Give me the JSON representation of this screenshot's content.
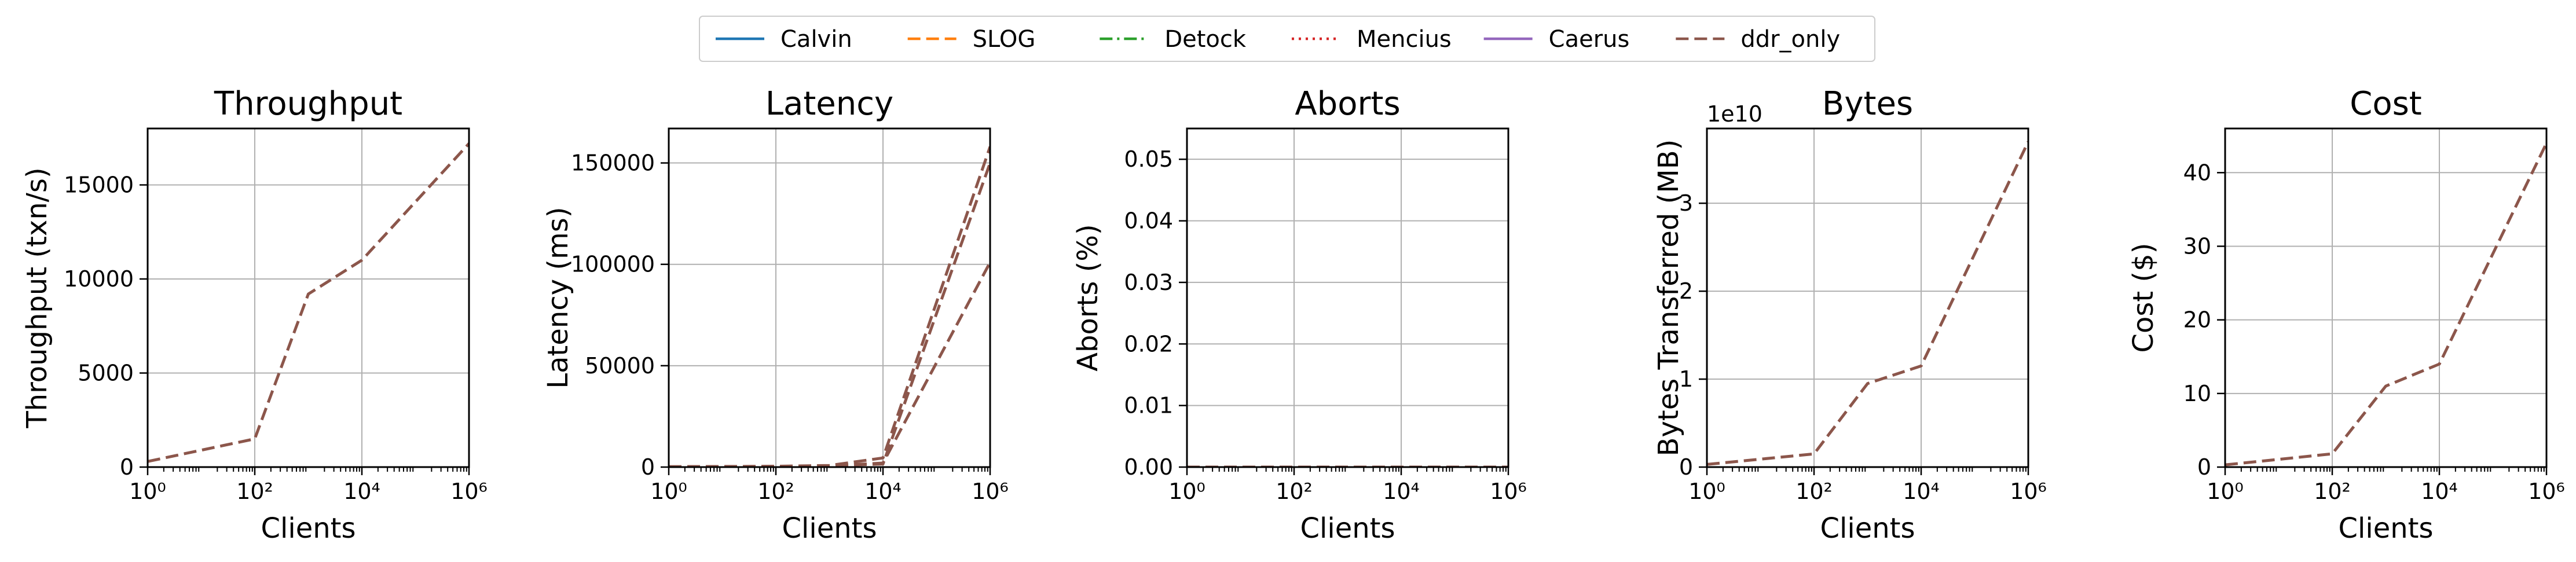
{
  "legend": {
    "location": "upper center",
    "entries": [
      {
        "label": "Calvin",
        "color": "#1f77b4",
        "dash": "solid"
      },
      {
        "label": "SLOG",
        "color": "#ff7f0e",
        "dash": "dashed"
      },
      {
        "label": "Detock",
        "color": "#2ca02c",
        "dash": "dashdot"
      },
      {
        "label": "Mencius",
        "color": "#d62728",
        "dash": "dotted"
      },
      {
        "label": "Caerus",
        "color": "#9467bd",
        "dash": "solid"
      },
      {
        "label": "ddr_only",
        "color": "#8c564b",
        "dash": "dashed"
      }
    ]
  },
  "chart_data": [
    {
      "type": "line",
      "title": "Throughput",
      "xlabel": "Clients",
      "ylabel": "Throughput (txn/s)",
      "xscale": "log",
      "xlim": [
        1,
        1000000
      ],
      "ylim": [
        0,
        18000
      ],
      "xticks": [
        1,
        100,
        10000,
        1000000
      ],
      "yticks": [
        0,
        5000,
        10000,
        15000
      ],
      "ytick_labels": [
        "0",
        "5000",
        "10000",
        "15000"
      ],
      "grid": true,
      "series": [
        {
          "name": "ddr_only",
          "color": "#8c564b",
          "dash": "dashed",
          "x": [
            1,
            100,
            1000,
            10000,
            1000000
          ],
          "y": [
            300,
            1500,
            9200,
            11000,
            17200
          ]
        }
      ]
    },
    {
      "type": "line",
      "title": "Latency",
      "xlabel": "Clients",
      "ylabel": "Latency (ms)",
      "xscale": "log",
      "xlim": [
        1,
        1000000
      ],
      "ylim": [
        0,
        167000
      ],
      "xticks": [
        1,
        100,
        10000,
        1000000
      ],
      "yticks": [
        0,
        50000,
        100000,
        150000
      ],
      "ytick_labels": [
        "0",
        "50000",
        "100000",
        "150000"
      ],
      "grid": true,
      "series": [
        {
          "name": "ddr_only",
          "color": "#8c564b",
          "dash": "dashed",
          "x": [
            1,
            100,
            1000,
            10000,
            1000000
          ],
          "y": [
            200,
            400,
            800,
            4500,
            158000
          ]
        },
        {
          "name": "ddr_only",
          "color": "#8c564b",
          "dash": "dashed",
          "x": [
            1,
            100,
            1000,
            10000,
            1000000
          ],
          "y": [
            150,
            300,
            600,
            2000,
            101000
          ]
        },
        {
          "name": "ddr_only",
          "color": "#8c564b",
          "dash": "dashed",
          "x": [
            1,
            100,
            1000,
            10000,
            1000000
          ],
          "y": [
            180,
            350,
            700,
            1500,
            150000
          ]
        }
      ]
    },
    {
      "type": "line",
      "title": "Aborts",
      "xlabel": "Clients",
      "ylabel": "Aborts (%)",
      "xscale": "log",
      "xlim": [
        1,
        1000000
      ],
      "ylim": [
        0,
        0.055
      ],
      "xticks": [
        1,
        100,
        10000,
        1000000
      ],
      "yticks": [
        0,
        0.01,
        0.02,
        0.03,
        0.04,
        0.05
      ],
      "ytick_labels": [
        "0.00",
        "0.01",
        "0.02",
        "0.03",
        "0.04",
        "0.05"
      ],
      "grid": true,
      "series": [
        {
          "name": "ddr_only",
          "color": "#8c564b",
          "dash": "dashed",
          "x": [
            1,
            100,
            1000,
            10000,
            1000000
          ],
          "y": [
            0,
            0,
            0,
            0,
            0
          ]
        }
      ]
    },
    {
      "type": "line",
      "title": "Bytes",
      "xlabel": "Clients",
      "ylabel": "Bytes Transferred (MB)",
      "offset_text": "1e10",
      "xscale": "log",
      "xlim": [
        1,
        1000000
      ],
      "ylim": [
        0,
        3.85
      ],
      "xticks": [
        1,
        100,
        10000,
        1000000
      ],
      "yticks": [
        0,
        1,
        2,
        3
      ],
      "ytick_labels": [
        "0",
        "1",
        "2",
        "3"
      ],
      "grid": true,
      "series": [
        {
          "name": "ddr_only",
          "color": "#8c564b",
          "dash": "dashed",
          "x": [
            1,
            100,
            1000,
            10000,
            1000000
          ],
          "y": [
            0.03,
            0.15,
            0.95,
            1.15,
            3.7
          ]
        }
      ]
    },
    {
      "type": "line",
      "title": "Cost",
      "xlabel": "Clients",
      "ylabel": "Cost ($)",
      "xscale": "log",
      "xlim": [
        1,
        1000000
      ],
      "ylim": [
        0,
        46
      ],
      "xticks": [
        1,
        100,
        10000,
        1000000
      ],
      "yticks": [
        0,
        10,
        20,
        30,
        40
      ],
      "ytick_labels": [
        "0",
        "10",
        "20",
        "30",
        "40"
      ],
      "grid": true,
      "series": [
        {
          "name": "ddr_only",
          "color": "#8c564b",
          "dash": "dashed",
          "x": [
            1,
            100,
            1000,
            10000,
            1000000
          ],
          "y": [
            0.3,
            1.8,
            11,
            14,
            44
          ]
        }
      ]
    }
  ]
}
